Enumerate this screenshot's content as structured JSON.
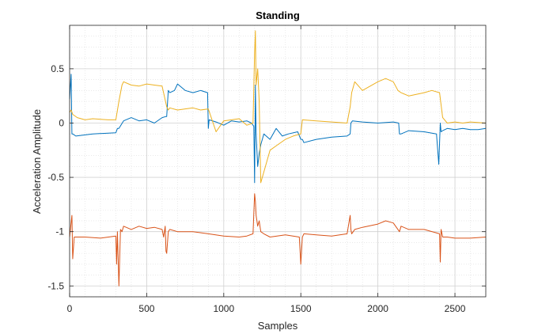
{
  "chart_data": {
    "type": "line",
    "title": "Standing",
    "xlabel": "Samples",
    "ylabel": "Acceleration Amplitude",
    "xlim": [
      0,
      2700
    ],
    "ylim": [
      -1.6,
      0.9
    ],
    "x_ticks": [
      0,
      500,
      1000,
      1500,
      2000,
      2500
    ],
    "x_tick_labels": [
      "0",
      "500",
      "1000",
      "1500",
      "2000",
      "2500"
    ],
    "y_ticks": [
      0.5,
      0,
      -0.5,
      -1,
      -1.5
    ],
    "y_tick_labels": [
      "0.5",
      "0",
      "-0.5",
      "-1",
      "-1.5"
    ],
    "grid": true,
    "minor_grid": true,
    "series": [
      {
        "color": "#0072BD",
        "x": [
          0,
          10,
          15,
          20,
          40,
          150,
          300,
          310,
          320,
          350,
          400,
          450,
          500,
          550,
          600,
          625,
          630,
          640,
          650,
          680,
          700,
          750,
          800,
          850,
          895,
          900,
          905,
          950,
          1000,
          1050,
          1100,
          1150,
          1180,
          1195,
          1200,
          1205,
          1210,
          1220,
          1230,
          1240,
          1260,
          1300,
          1340,
          1380,
          1420,
          1480,
          1500,
          1510,
          1520,
          1600,
          1700,
          1800,
          1820,
          1825,
          1835,
          1900,
          2000,
          2100,
          2135,
          2140,
          2150,
          2200,
          2300,
          2380,
          2395,
          2405,
          2410,
          2420,
          2450,
          2500,
          2550,
          2600,
          2650,
          2700
        ],
        "values": [
          0.22,
          0.45,
          -0.1,
          -0.1,
          -0.12,
          -0.1,
          -0.09,
          -0.05,
          -0.05,
          0.02,
          0.05,
          0.02,
          0.03,
          0.0,
          0.05,
          0.06,
          0.06,
          0.3,
          0.28,
          0.3,
          0.36,
          0.3,
          0.28,
          0.3,
          0.28,
          -0.05,
          0.03,
          0.01,
          -0.02,
          0.02,
          0.01,
          0.02,
          0.0,
          -0.03,
          -0.55,
          0.35,
          -0.1,
          -0.4,
          -0.28,
          -0.2,
          -0.1,
          -0.15,
          -0.05,
          -0.12,
          -0.1,
          -0.08,
          -0.15,
          -0.15,
          -0.18,
          -0.15,
          -0.13,
          -0.12,
          -0.1,
          0.0,
          0.02,
          0.01,
          0.0,
          0.01,
          0.0,
          -0.1,
          -0.1,
          -0.07,
          -0.08,
          -0.1,
          -0.38,
          0.0,
          -0.08,
          -0.07,
          -0.05,
          -0.06,
          -0.05,
          -0.06,
          -0.06,
          -0.05
        ]
      },
      {
        "color": "#EDB120",
        "x": [
          0,
          10,
          20,
          50,
          100,
          150,
          250,
          300,
          320,
          340,
          350,
          400,
          450,
          500,
          550,
          600,
          630,
          640,
          650,
          700,
          750,
          800,
          850,
          900,
          950,
          1000,
          1100,
          1150,
          1190,
          1200,
          1205,
          1210,
          1220,
          1230,
          1240,
          1260,
          1280,
          1300,
          1350,
          1400,
          1450,
          1500,
          1510,
          1600,
          1700,
          1800,
          1820,
          1830,
          1850,
          1900,
          2000,
          2050,
          2100,
          2130,
          2150,
          2200,
          2300,
          2350,
          2400,
          2420,
          2450,
          2500,
          2550,
          2600,
          2700
        ],
        "values": [
          0.1,
          0.12,
          0.08,
          0.05,
          0.03,
          0.04,
          0.03,
          0.03,
          0.2,
          0.35,
          0.38,
          0.35,
          0.34,
          0.36,
          0.35,
          0.34,
          0.15,
          0.12,
          0.14,
          0.12,
          0.13,
          0.14,
          0.12,
          0.13,
          -0.08,
          0.02,
          0.04,
          -0.02,
          0.0,
          0.65,
          0.85,
          0.35,
          0.5,
          0.2,
          -0.55,
          -0.45,
          -0.35,
          -0.25,
          -0.2,
          -0.15,
          -0.12,
          -0.1,
          0.03,
          0.02,
          0.01,
          0.0,
          0.15,
          0.28,
          0.38,
          0.3,
          0.38,
          0.41,
          0.38,
          0.3,
          0.28,
          0.25,
          0.28,
          0.3,
          0.28,
          0.05,
          0.0,
          0.01,
          0.0,
          0.01,
          0.0
        ]
      },
      {
        "color": "#D95319",
        "x": [
          0,
          15,
          20,
          30,
          100,
          200,
          300,
          305,
          310,
          320,
          330,
          340,
          350,
          400,
          450,
          500,
          550,
          600,
          610,
          620,
          625,
          630,
          640,
          650,
          700,
          800,
          900,
          1000,
          1100,
          1150,
          1190,
          1200,
          1205,
          1210,
          1220,
          1230,
          1240,
          1260,
          1300,
          1400,
          1490,
          1500,
          1510,
          1520,
          1600,
          1700,
          1800,
          1820,
          1825,
          1830,
          1850,
          1900,
          2000,
          2050,
          2100,
          2140,
          2150,
          2200,
          2300,
          2400,
          2405,
          2410,
          2420,
          2450,
          2500,
          2600,
          2700
        ],
        "values": [
          -1.05,
          -0.85,
          -1.25,
          -1.05,
          -1.05,
          -1.06,
          -1.04,
          -1.3,
          -1.0,
          -1.5,
          -0.98,
          -1.0,
          -0.95,
          -0.98,
          -0.95,
          -0.97,
          -0.96,
          -0.98,
          -1.05,
          -0.95,
          -1.18,
          -1.2,
          -1.0,
          -0.98,
          -1.0,
          -1.0,
          -1.02,
          -1.04,
          -1.05,
          -1.04,
          -1.02,
          -0.65,
          -0.72,
          -0.85,
          -0.95,
          -0.9,
          -1.0,
          -1.02,
          -1.05,
          -1.03,
          -1.05,
          -1.3,
          -1.05,
          -1.02,
          -1.03,
          -1.04,
          -1.02,
          -0.85,
          -0.98,
          -1.02,
          -0.98,
          -0.96,
          -0.93,
          -0.9,
          -0.92,
          -1.0,
          -0.95,
          -0.98,
          -0.98,
          -1.02,
          -1.28,
          -0.98,
          -1.05,
          -1.05,
          -1.06,
          -1.06,
          -1.05
        ]
      }
    ]
  }
}
